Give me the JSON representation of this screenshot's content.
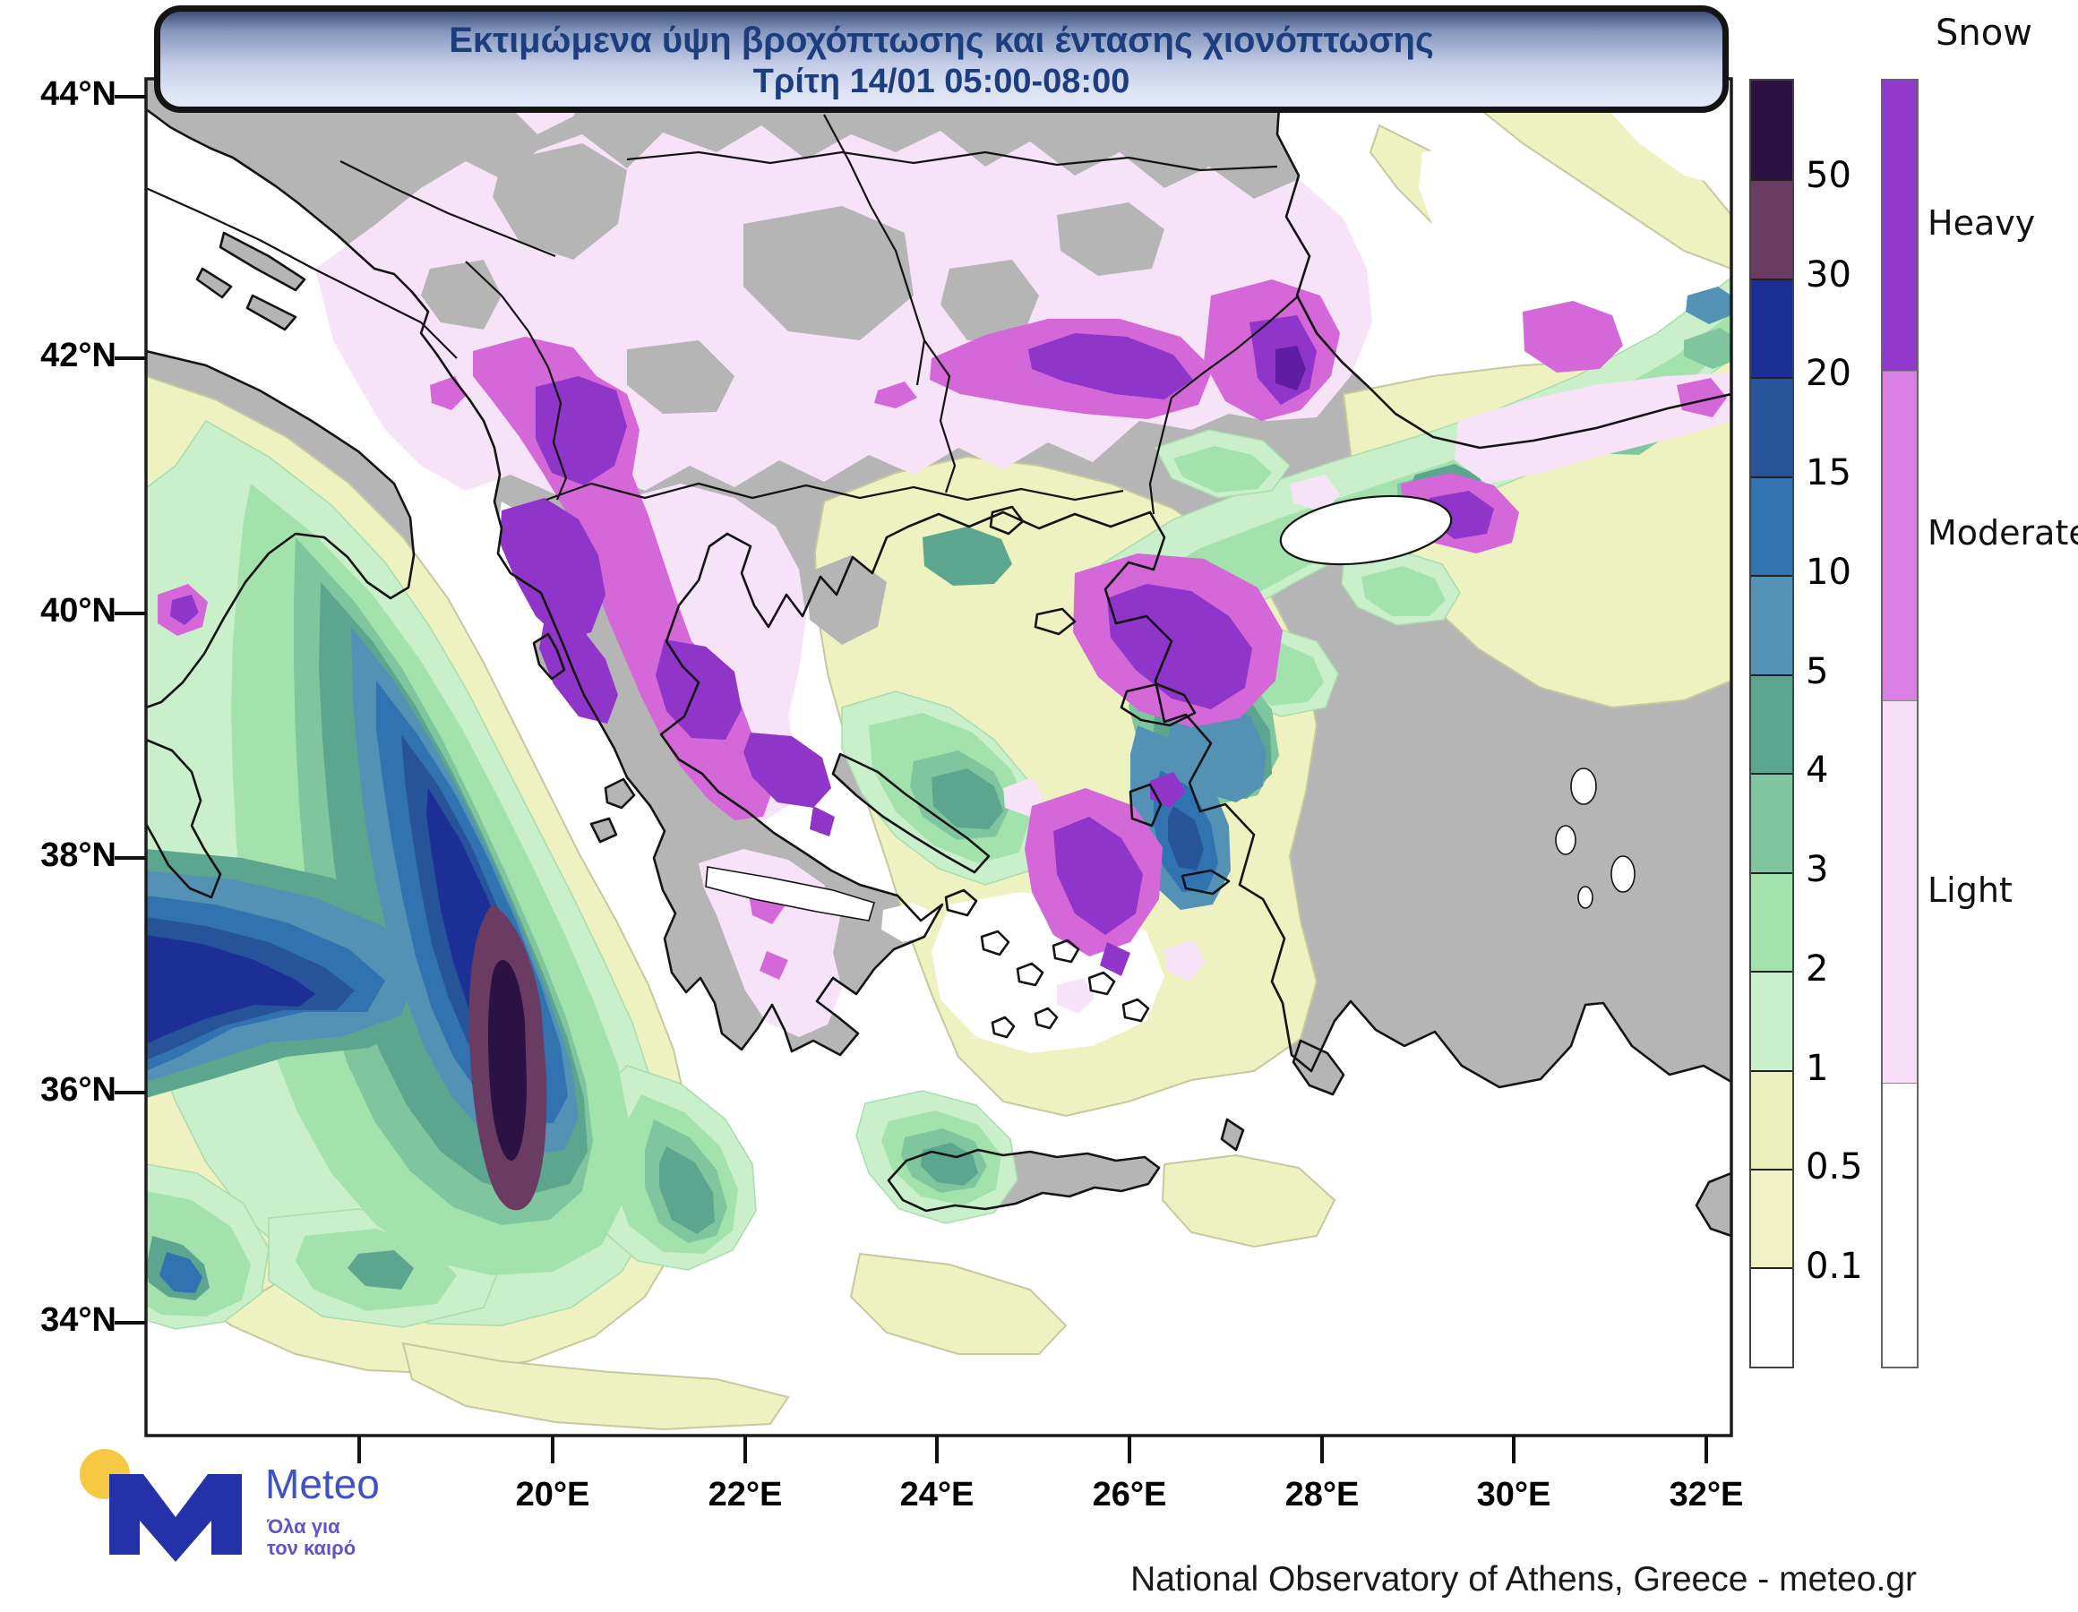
{
  "banner": {
    "line1": "Εκτιμώμενα ύψη βροχόπτωσης και έντασης χιονόπτωσης",
    "line2": "Τρίτη 14/01 05:00-08:00"
  },
  "axes": {
    "lat": [
      "44°N",
      "42°N",
      "40°N",
      "38°N",
      "36°N",
      "34°N"
    ],
    "lon": [
      "20°E",
      "22°E",
      "24°E",
      "26°E",
      "28°E",
      "30°E",
      "32°E"
    ]
  },
  "rain_legend": {
    "ticks": [
      "50",
      "30",
      "20",
      "15",
      "10",
      "5",
      "4",
      "3",
      "2",
      "1",
      "0.5",
      "0.1"
    ],
    "colors": [
      "#2b1240",
      "#6b3c63",
      "#1b2f94",
      "#27539b",
      "#3172b1",
      "#5492b5",
      "#5ca690",
      "#7fc69e",
      "#a3e2ad",
      "#c9f0ca",
      "#ecf0bc",
      "#f0f2c6",
      "#ffffff"
    ]
  },
  "snow_legend": {
    "title": "Snow",
    "labels": [
      "Heavy",
      "Moderate",
      "Light"
    ],
    "colors": [
      "#9138cd",
      "#da7fe4",
      "#f6dff6",
      "#ffffff"
    ]
  },
  "logo": {
    "brand": "Meteo",
    "tagline1": "Όλα για",
    "tagline2": "τον καιρό"
  },
  "attribution": "National Observatory of Athens, Greece - meteo.gr",
  "palette": {
    "land": "#b5b5b5",
    "sea": "#ffffff",
    "coast": "#141414",
    "rain_01_05": "#f0f2c6",
    "rain_05_1": "#eef1c0",
    "rain_1_2": "#c9f0ca",
    "rain_2_3": "#a3e2ad",
    "rain_3_4": "#7fc69e",
    "rain_4_5": "#5ca690",
    "rain_5_10": "#5492b5",
    "rain_10_15": "#3172b1",
    "rain_15_20": "#27539b",
    "rain_20_30": "#1b2f94",
    "rain_30_50": "#6b3c63",
    "rain_50": "#2b1240",
    "snow_light": "#f7e3f8",
    "snow_moderate": "#d468d8",
    "snow_heavy": "#8f35c9",
    "snow_heavy_core": "#5f1da6"
  }
}
